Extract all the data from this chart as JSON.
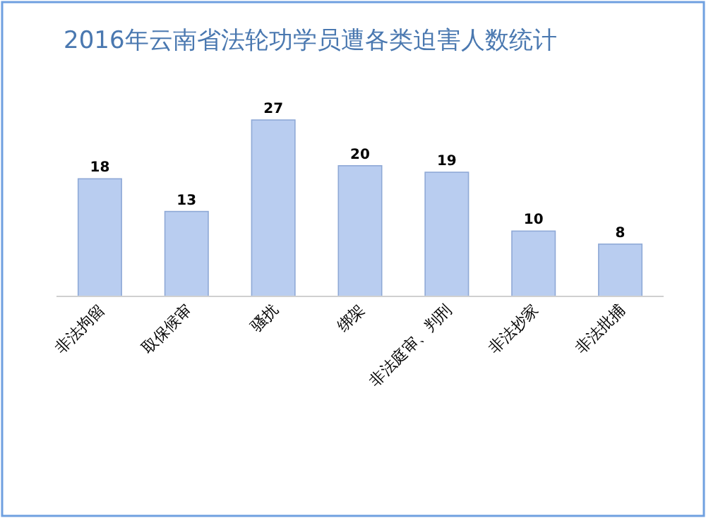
{
  "chart_data": {
    "type": "bar",
    "title": "2016年云南省法轮功学员遭各类迫害人数统计",
    "categories": [
      "非法拘留",
      "取保候审",
      "骚扰",
      "绑架",
      "非法庭审、判刑",
      "非法抄家",
      "非法批捕"
    ],
    "values": [
      18,
      13,
      27,
      20,
      19,
      10,
      8
    ],
    "color": "#b9cdf0",
    "data_labels": true
  }
}
